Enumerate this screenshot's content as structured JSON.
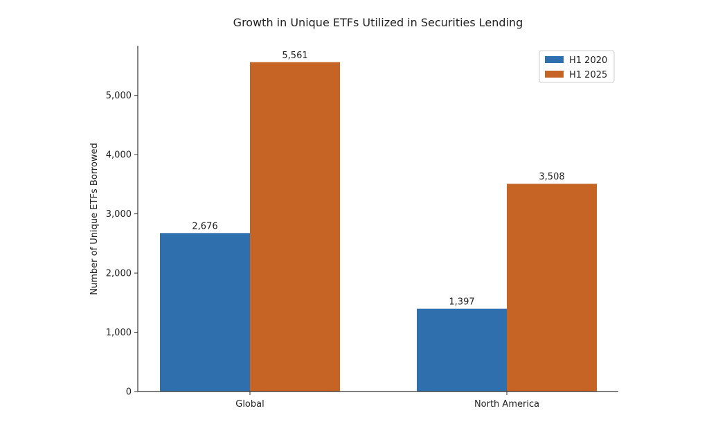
{
  "chart_data": {
    "type": "bar",
    "title": "Growth in Unique ETFs Utilized in Securities Lending",
    "xlabel": "",
    "ylabel": "Number of Unique ETFs Borrowed",
    "categories": [
      "Global",
      "North America"
    ],
    "series": [
      {
        "name": "H1 2020",
        "color": "#2f6fad",
        "values": [
          2676,
          1397
        ],
        "labels": [
          "2,676",
          "1,397"
        ]
      },
      {
        "name": "H1 2025",
        "color": "#c56425",
        "values": [
          5561,
          3508
        ],
        "labels": [
          "5,561",
          "3,508"
        ]
      }
    ],
    "ylim": [
      0,
      5839
    ],
    "yticks": [
      0,
      1000,
      2000,
      3000,
      4000,
      5000
    ],
    "ytick_labels": [
      "0",
      "1,000",
      "2,000",
      "3,000",
      "4,000",
      "5,000"
    ],
    "legend": "top-right",
    "grid": false
  }
}
